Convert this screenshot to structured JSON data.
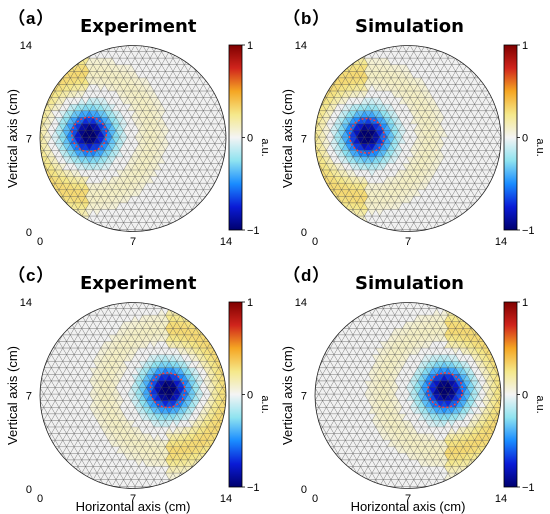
{
  "figure": {
    "colorbar": {
      "ticks": [
        "1",
        "0",
        "−1"
      ],
      "unit": "a.u.",
      "colors": [
        "#7f0000",
        "#d0241c",
        "#f5a623",
        "#f5e88a",
        "#f4f4f4",
        "#8fe3f0",
        "#1a8cff",
        "#0a1bd6",
        "#00006e"
      ]
    },
    "mesh_background": "#f1f1f1",
    "mesh_line_color": "#444444",
    "ring_color": "#ff3b3b",
    "panels": [
      {
        "letter": "（a）",
        "title": "Experiment",
        "ylabel": "Vertical axis (cm)",
        "xlabel": "",
        "xticks": [
          "0",
          "7",
          "14"
        ],
        "yticks": [
          "14",
          "7",
          "0"
        ],
        "source_center_cm": [
          3.7,
          7.3
        ],
        "source_radius_cm": 1.3
      },
      {
        "letter": "（b）",
        "title": "Simulation",
        "ylabel": "Vertical axis (cm)",
        "xlabel": "",
        "xticks": [
          "0",
          "7",
          "14"
        ],
        "yticks": [
          "14",
          "7",
          "0"
        ],
        "source_center_cm": [
          3.9,
          7.2
        ],
        "source_radius_cm": 1.3
      },
      {
        "letter": "（c）",
        "title": "Experiment",
        "ylabel": "Vertical axis (cm)",
        "xlabel": "Horizontal axis (cm)",
        "xticks": [
          "0",
          "7",
          "14"
        ],
        "yticks": [
          "14",
          "7",
          "0"
        ],
        "source_center_cm": [
          9.6,
          7.4
        ],
        "source_radius_cm": 1.3
      },
      {
        "letter": "（d）",
        "title": "Simulation",
        "ylabel": "Vertical axis (cm)",
        "xlabel": "Horizontal axis (cm)",
        "xticks": [
          "0",
          "7",
          "14"
        ],
        "yticks": [
          "14",
          "7",
          "0"
        ],
        "source_center_cm": [
          9.8,
          7.4
        ],
        "source_radius_cm": 1.3
      }
    ]
  }
}
